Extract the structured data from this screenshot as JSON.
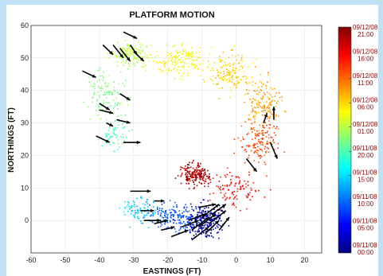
{
  "chart_data": {
    "type": "scatter",
    "title": "PLATFORM MOTION",
    "xlabel": "EASTINGS (FT)",
    "ylabel": "NORTHINGS (FT)",
    "xlim": [
      -60,
      25
    ],
    "ylim": [
      -10,
      60
    ],
    "x_ticks": [
      "-60",
      "-50",
      "-40",
      "-30",
      "-20",
      "-10",
      "0",
      "10",
      "20"
    ],
    "y_ticks": [
      "60",
      "50",
      "40",
      "30",
      "20",
      "10",
      "0"
    ],
    "grid": true,
    "colorbar": {
      "position": "right",
      "colormap": "jet",
      "labels": [
        [
          "09/12/08",
          "21:00"
        ],
        [
          "09/12/08",
          "16:00"
        ],
        [
          "09/12/08",
          "11:00"
        ],
        [
          "09/12/08",
          "06:00"
        ],
        [
          "09/12/08",
          "01:00"
        ],
        [
          "09/11/08",
          "20:00"
        ],
        [
          "09/11/08",
          "15:00"
        ],
        [
          "09/11/08",
          "10:00"
        ],
        [
          "09/11/08",
          "05:00"
        ],
        [
          "09/11/08",
          "00:00"
        ]
      ]
    },
    "point_clusters": [
      {
        "x": -9,
        "y": 0,
        "sx": 4,
        "sy": 3.5,
        "t": 0.05,
        "n": 260
      },
      {
        "x": -18,
        "y": 1,
        "sx": 5,
        "sy": 3,
        "t": 0.2,
        "n": 170
      },
      {
        "x": -28,
        "y": 3,
        "sx": 4,
        "sy": 3,
        "t": 0.33,
        "n": 90
      },
      {
        "x": -12,
        "y": 14,
        "sx": 3,
        "sy": 2.5,
        "t": 0.96,
        "n": 190
      },
      {
        "x": -1,
        "y": 10,
        "sx": 5,
        "sy": 4,
        "t": 0.86,
        "n": 110
      },
      {
        "x": 7,
        "y": 24,
        "sx": 4,
        "sy": 5,
        "t": 0.8,
        "n": 150
      },
      {
        "x": 8,
        "y": 36,
        "sx": 4,
        "sy": 5,
        "t": 0.72,
        "n": 140
      },
      {
        "x": -2,
        "y": 45,
        "sx": 5,
        "sy": 4,
        "t": 0.67,
        "n": 150
      },
      {
        "x": -16,
        "y": 49,
        "sx": 5,
        "sy": 3.5,
        "t": 0.62,
        "n": 160
      },
      {
        "x": -31,
        "y": 51,
        "sx": 4,
        "sy": 3,
        "t": 0.56,
        "n": 150
      },
      {
        "x": -38,
        "y": 38,
        "sx": 4,
        "sy": 5,
        "t": 0.5,
        "n": 120
      },
      {
        "x": -36,
        "y": 26,
        "sx": 3,
        "sy": 3,
        "t": 0.45,
        "n": 60
      }
    ],
    "arrows": [
      [
        -33,
        58,
        -29,
        56
      ],
      [
        -39,
        54,
        -36,
        51
      ],
      [
        -36,
        54,
        -33,
        50
      ],
      [
        -34,
        53,
        -31,
        49
      ],
      [
        -31,
        54,
        -29,
        51
      ],
      [
        -30,
        52,
        -27,
        49
      ],
      [
        -45,
        46,
        -41,
        44
      ],
      [
        -34,
        39,
        -31,
        37
      ],
      [
        -40,
        36,
        -37,
        34
      ],
      [
        -40,
        34,
        -36,
        33
      ],
      [
        -35,
        31,
        -31,
        30
      ],
      [
        -38,
        30,
        -36,
        29
      ],
      [
        -41,
        26,
        -37,
        24
      ],
      [
        -33,
        24,
        -28,
        24
      ],
      [
        -31,
        9,
        -25,
        9
      ],
      [
        -24,
        6,
        -21,
        6
      ],
      [
        -28,
        3,
        -24,
        3
      ],
      [
        -27,
        0,
        -22,
        0
      ],
      [
        -24,
        -1,
        -20,
        0
      ],
      [
        -22,
        -3,
        -18,
        -2
      ],
      [
        -19,
        -5,
        -14,
        -3
      ],
      [
        -16,
        -2,
        -11,
        0
      ],
      [
        -13,
        -3,
        -8,
        1
      ],
      [
        -11,
        -2,
        -6,
        2
      ],
      [
        -9,
        -4,
        -5,
        0
      ],
      [
        -8,
        -1,
        -3,
        3
      ],
      [
        -13,
        -6,
        -8,
        -2
      ],
      [
        -10,
        1,
        -5,
        5
      ],
      [
        -7,
        2,
        -3,
        5
      ],
      [
        -11,
        4,
        -6,
        5
      ],
      [
        -14,
        0,
        -9,
        2
      ],
      [
        -5,
        -3,
        -2,
        1
      ],
      [
        3,
        19,
        6,
        15
      ],
      [
        10,
        24,
        12,
        19
      ],
      [
        11,
        31,
        11,
        35
      ],
      [
        8,
        30,
        9,
        33
      ]
    ]
  }
}
